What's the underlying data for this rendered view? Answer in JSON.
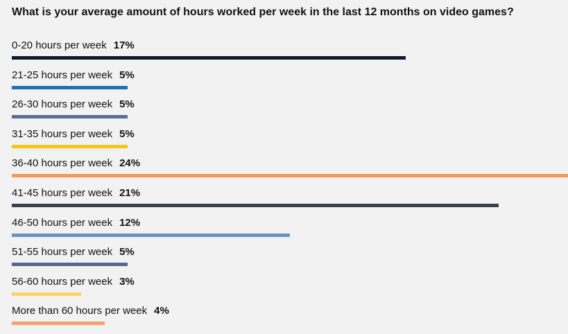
{
  "chart_data": {
    "type": "bar",
    "orientation": "horizontal",
    "title": "What is your average amount of hours worked per week in the last 12 months on video games?",
    "categories": [
      "0-20 hours per week",
      "21-25 hours per week",
      "26-30 hours per week",
      "31-35 hours per week",
      "36-40 hours per week",
      "41-45 hours per week",
      "46-50 hours per week",
      "51-55 hours per week",
      "56-60 hours per week",
      "More than 60 hours per week"
    ],
    "values": [
      17,
      5,
      5,
      5,
      24,
      21,
      12,
      5,
      3,
      4
    ],
    "value_labels": [
      "17%",
      "5%",
      "5%",
      "5%",
      "24%",
      "21%",
      "12%",
      "5%",
      "3%",
      "4%"
    ],
    "colors": [
      "#0f1a2e",
      "#1f6fb4",
      "#5a6e9a",
      "#f5c518",
      "#f39a5b",
      "#3a3f4b",
      "#6a92c9",
      "#56688f",
      "#f7d36a",
      "#f4a26a"
    ],
    "unit": "%",
    "xlim": [
      0,
      24
    ],
    "grid": false,
    "legend": "none"
  }
}
